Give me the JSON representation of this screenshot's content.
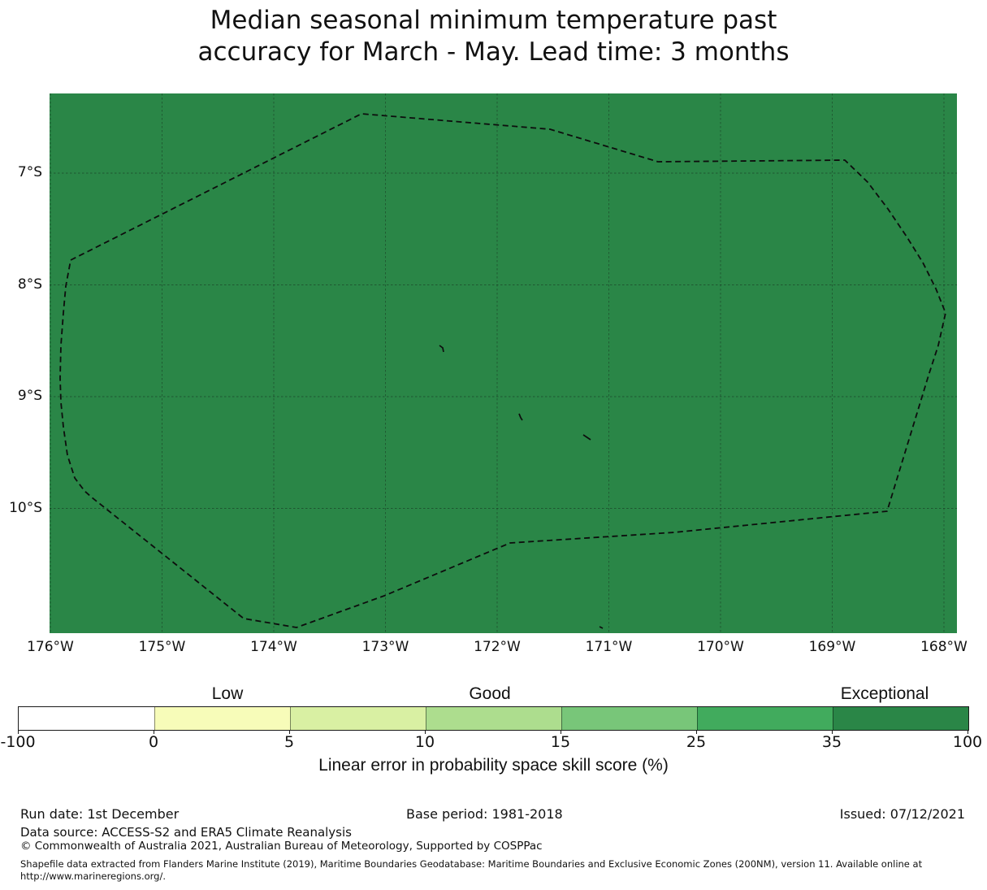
{
  "title": {
    "line1": "Median seasonal minimum temperature past",
    "line2": "accuracy for March - May. Lead time: 3 months"
  },
  "map": {
    "fill_color": "#2a8647",
    "x_tick_labels": [
      "176°W",
      "175°W",
      "174°W",
      "173°W",
      "172°W",
      "171°W",
      "170°W",
      "169°W",
      "168°W"
    ],
    "y_tick_labels": [
      "7°S",
      "8°S",
      "9°S",
      "10°S"
    ]
  },
  "colorbar": {
    "category_labels": [
      "Low",
      "Good",
      "Exceptional"
    ],
    "tick_labels": [
      "-100",
      "0",
      "5",
      "10",
      "15",
      "25",
      "35",
      "100"
    ],
    "segment_colors": [
      "#ffffff",
      "#f7fcb9",
      "#d9f0a3",
      "#addd8e",
      "#78c679",
      "#41ab5d",
      "#2a8647"
    ],
    "axis_label": "Linear error in probability space skill score (%)"
  },
  "footer": {
    "run_date": "Run date: 1st December",
    "base_period": "Base period: 1981-2018",
    "issued": "Issued: 07/12/2021",
    "data_source": "Data source: ACCESS-S2 and ERA5 Climate Reanalysis",
    "copyright": "© Commonwealth of Australia 2021, Australian Bureau of Meteorology, Supported by COSPPac",
    "shapefile_note_line1": "Shapefile data extracted from Flanders Marine Institute (2019), Maritime Boundaries Geodatabase: Maritime Boundaries and Exclusive Economic Zones (200NM), version 11. Available online at",
    "shapefile_note_line2": "http://www.marineregions.org/."
  },
  "chart_data": {
    "type": "heatmap",
    "title": "Median seasonal minimum temperature past accuracy for March - May. Lead time: 3 months",
    "season": "March - May",
    "lead_time": "3 months",
    "x_tick_labels": [
      "176°W",
      "175°W",
      "174°W",
      "173°W",
      "172°W",
      "171°W",
      "170°W",
      "169°W",
      "168°W"
    ],
    "y_tick_labels": [
      "7°S",
      "8°S",
      "9°S",
      "10°S"
    ],
    "grid": true,
    "colorbar_label": "Linear error in probability space skill score (%)",
    "colorbar_bins": [
      {
        "from": -100,
        "to": 0,
        "color": "#ffffff"
      },
      {
        "from": 0,
        "to": 5,
        "color": "#f7fcb9",
        "category": "Low"
      },
      {
        "from": 5,
        "to": 10,
        "color": "#d9f0a3"
      },
      {
        "from": 10,
        "to": 15,
        "color": "#addd8e",
        "category": "Good"
      },
      {
        "from": 15,
        "to": 25,
        "color": "#78c679"
      },
      {
        "from": 25,
        "to": 35,
        "color": "#41ab5d"
      },
      {
        "from": 35,
        "to": 100,
        "color": "#2a8647",
        "category": "Exceptional"
      }
    ],
    "map_fill": "Entire mapped region shaded with the 35–100 (Exceptional) bin color #2a8647",
    "overlay": "Dashed EEZ boundary polygon with four small island marks inside"
  }
}
